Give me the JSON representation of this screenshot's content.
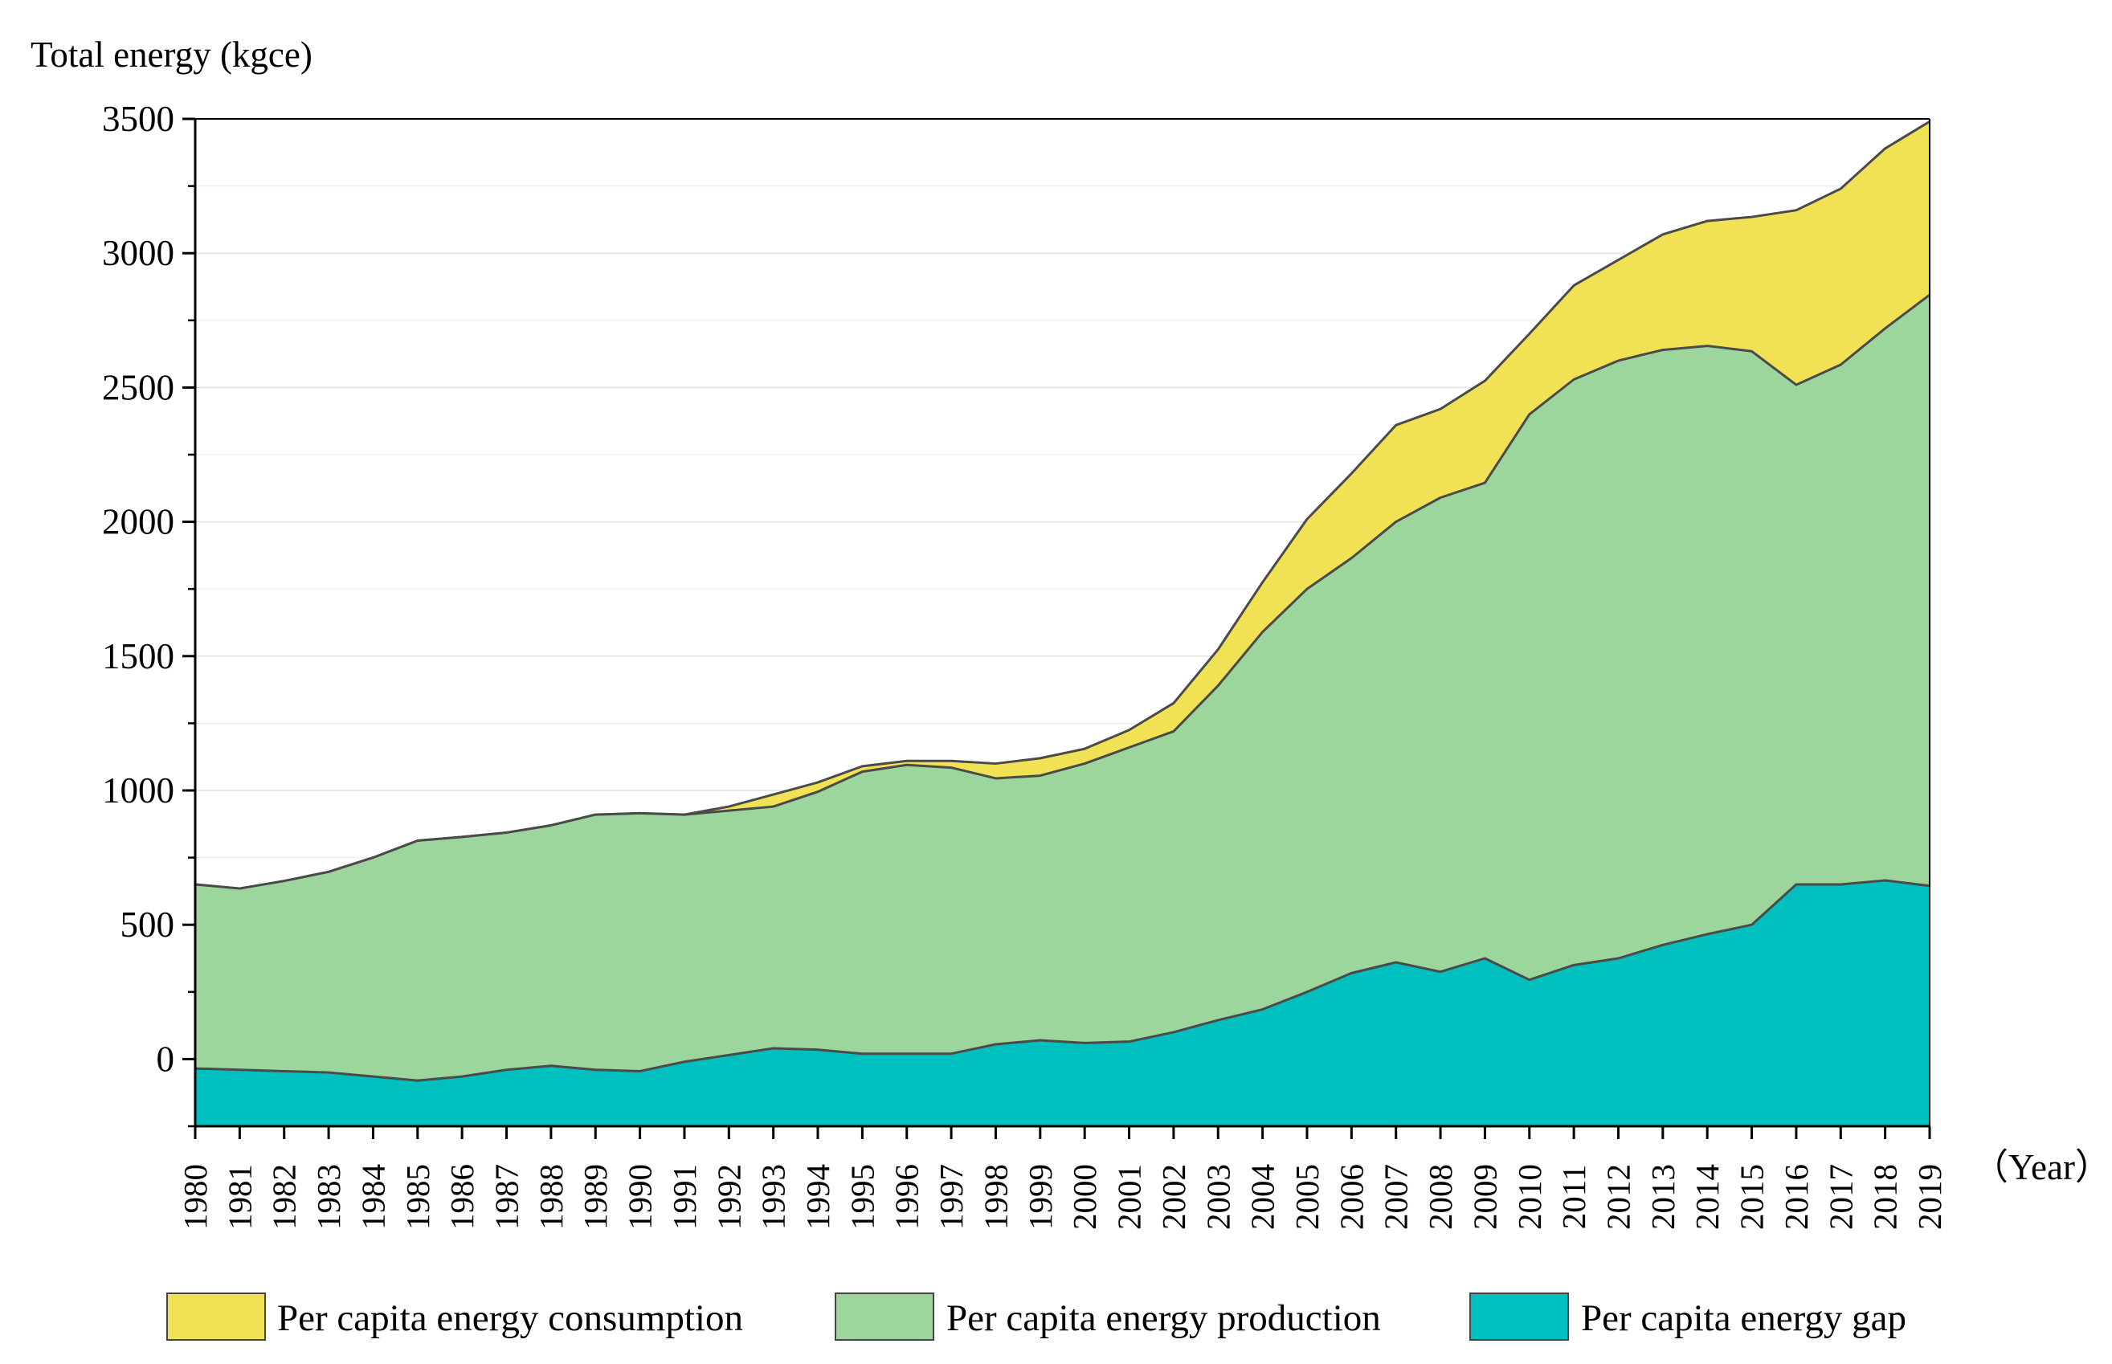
{
  "chart_data": {
    "type": "area",
    "ylabel": "Total energy (kgce)",
    "xlabel": "（Year）",
    "ylim": [
      -250,
      3500
    ],
    "yticks": [
      0,
      500,
      1000,
      1500,
      2000,
      2500,
      3000,
      3500
    ],
    "grid": true,
    "legend_position": "bottom",
    "categories": [
      "1980",
      "1981",
      "1982",
      "1983",
      "1984",
      "1985",
      "1986",
      "1987",
      "1988",
      "1989",
      "1990",
      "1991",
      "1992",
      "1993",
      "1994",
      "1995",
      "1996",
      "1997",
      "1998",
      "1999",
      "2000",
      "2001",
      "2002",
      "2003",
      "2004",
      "2005",
      "2006",
      "2007",
      "2008",
      "2009",
      "2010",
      "2011",
      "2012",
      "2013",
      "2014",
      "2015",
      "2016",
      "2017",
      "2018",
      "2019"
    ],
    "series": [
      {
        "name": "Per capita energy consumption",
        "color": "#F0E155",
        "values": [
          650,
          635,
          663,
          697,
          750,
          813,
          827,
          843,
          870,
          910,
          915,
          910,
          940,
          985,
          1030,
          1090,
          1110,
          1110,
          1100,
          1120,
          1155,
          1225,
          1325,
          1525,
          1775,
          2010,
          2180,
          2360,
          2420,
          2525,
          2700,
          2880,
          2975,
          3070,
          3120,
          3135,
          3160,
          3240,
          3390,
          3490
        ]
      },
      {
        "name": "Per capita energy production",
        "color": "#9DD69D",
        "values": [
          650,
          635,
          663,
          697,
          750,
          813,
          827,
          843,
          870,
          910,
          915,
          910,
          925,
          940,
          995,
          1070,
          1095,
          1085,
          1045,
          1055,
          1100,
          1160,
          1220,
          1390,
          1590,
          1750,
          1865,
          2000,
          2090,
          2145,
          2400,
          2530,
          2600,
          2640,
          2655,
          2635,
          2510,
          2585,
          2720,
          2845
        ]
      },
      {
        "name": "Per capita energy gap",
        "color": "#00BFBF",
        "values": [
          -35,
          -40,
          -45,
          -50,
          -65,
          -80,
          -65,
          -40,
          -25,
          -40,
          -45,
          -10,
          15,
          40,
          35,
          20,
          20,
          20,
          55,
          70,
          60,
          65,
          100,
          145,
          185,
          250,
          320,
          360,
          325,
          375,
          295,
          350,
          375,
          425,
          465,
          500,
          650,
          650,
          665,
          645
        ]
      }
    ]
  }
}
